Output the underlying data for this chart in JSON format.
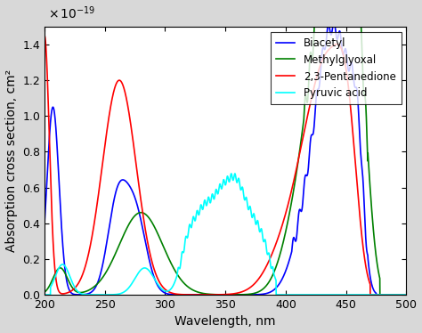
{
  "title": "",
  "xlabel": "Wavelength, nm",
  "ylabel": "Absorption cross section, cm²",
  "xlim": [
    200,
    500
  ],
  "ylim": [
    0,
    1.5
  ],
  "xticks": [
    200,
    250,
    300,
    350,
    400,
    450,
    500
  ],
  "yticks": [
    0,
    0.2,
    0.4,
    0.6,
    0.8,
    1.0,
    1.2,
    1.4
  ],
  "legend_entries": [
    "Biacetyl",
    "Methylglyoxal",
    "2,3-Pentanedione",
    "Pyruvic acid"
  ],
  "line_colors": [
    "blue",
    "green",
    "red",
    "cyan"
  ],
  "fig_bg": "#d8d8d8",
  "axes_bg": "#ffffff",
  "fontsize": 10,
  "tick_fontsize": 9
}
